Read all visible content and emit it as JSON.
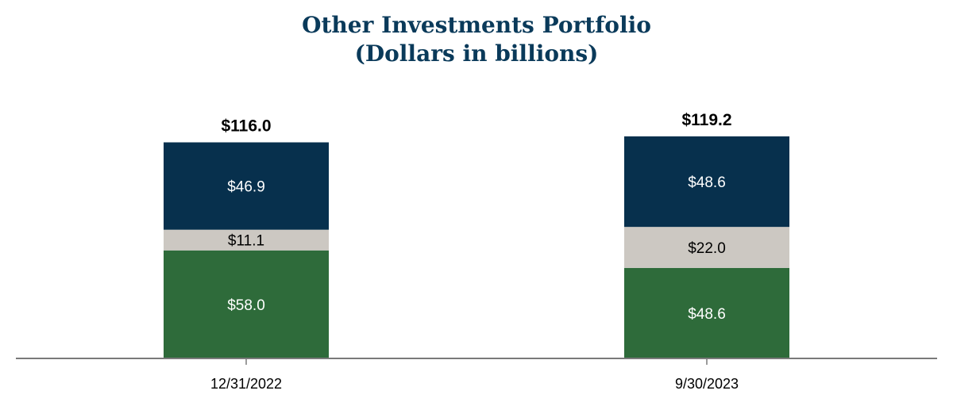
{
  "chart_data": {
    "type": "bar",
    "stacked": true,
    "title": "Other Investments Portfolio",
    "subtitle": "(Dollars in billions)",
    "categories": [
      "12/31/2022",
      "9/30/2023"
    ],
    "series": [
      {
        "values": [
          58.0,
          48.6
        ],
        "labels": [
          "$58.0",
          "$48.6"
        ],
        "color": "#2e6b3a",
        "label_color": "#ffffff"
      },
      {
        "values": [
          11.1,
          22.0
        ],
        "labels": [
          "$11.1",
          "$22.0"
        ],
        "color": "#ccc8c2",
        "label_color": "#000000"
      },
      {
        "values": [
          46.9,
          48.6
        ],
        "labels": [
          "$46.9",
          "$48.6"
        ],
        "color": "#07304d",
        "label_color": "#ffffff"
      }
    ],
    "totals": [
      "$116.0",
      "$119.2"
    ],
    "xlabel": "",
    "ylabel": "",
    "ylim": [
      0,
      119.2
    ],
    "grid": false,
    "legend": "none"
  }
}
